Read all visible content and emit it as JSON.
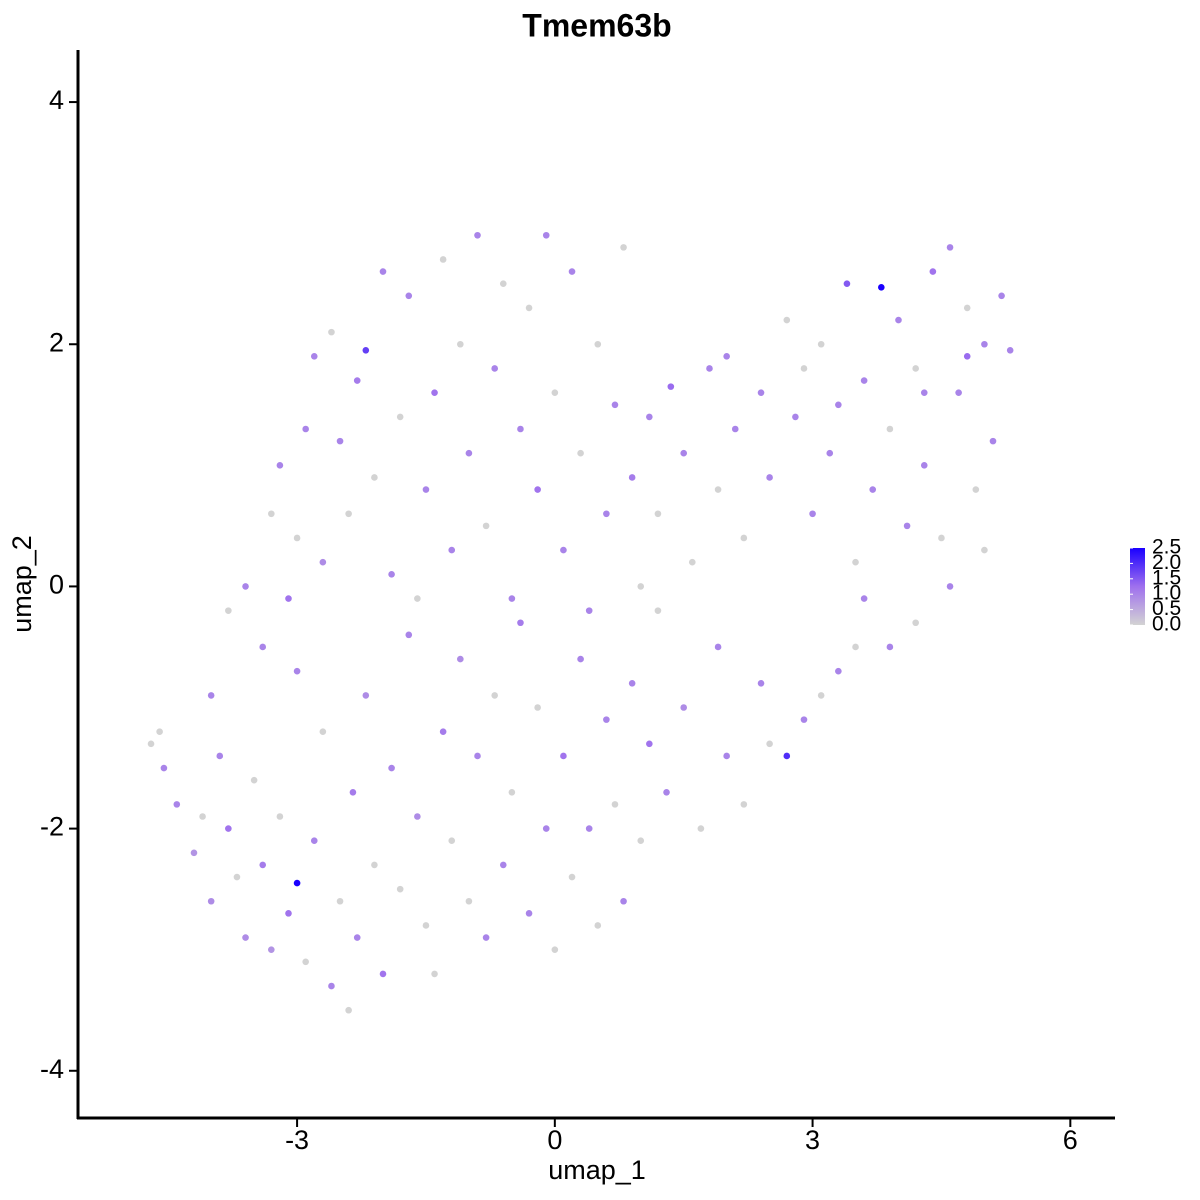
{
  "chart_data": {
    "type": "scatter",
    "title": "Tmem63b",
    "x_label": "umap_1",
    "y_label": "umap_2",
    "xlim": [
      -5.55,
      6.52
    ],
    "ylim": [
      -4.39,
      4.43
    ],
    "xticks": [
      -3,
      0,
      3,
      6
    ],
    "yticks": [
      -4,
      -2,
      0,
      2,
      4
    ],
    "grid": false,
    "color_stops": [
      "#d3d3d3",
      "#9f70ee",
      "#1a00ff"
    ],
    "colorbar_lim": [
      0,
      2.5
    ],
    "colorbar_ticks": [
      {
        "value": 0,
        "label": "0.0"
      },
      0.5,
      {
        "value": 1,
        "label": "1.0"
      },
      1.5,
      {
        "value": 2,
        "label": "2.0"
      },
      2.5
    ],
    "x": [
      -4.7,
      -4.6,
      -4.55,
      -4.4,
      -4.2,
      -4.1,
      -4.0,
      -3.9,
      -3.8,
      -3.7,
      -3.6,
      -3.5,
      -3.4,
      -3.3,
      -3.2,
      -3.1,
      -3.0,
      -3.0,
      -2.9,
      -2.8,
      -2.7,
      -2.6,
      -2.5,
      -2.4,
      -2.35,
      -2.3,
      -2.2,
      -2.1,
      -2.0,
      -1.9,
      -1.8,
      -1.7,
      -1.6,
      -1.5,
      -1.4,
      -1.3,
      -1.2,
      -1.1,
      -1.0,
      -0.9,
      -0.8,
      -0.7,
      -0.6,
      -0.5,
      -0.4,
      -0.3,
      -0.2,
      -0.1,
      0.0,
      0.1,
      0.2,
      0.3,
      0.4,
      0.5,
      0.6,
      0.7,
      0.8,
      0.9,
      1.0,
      1.1,
      1.2,
      1.3,
      1.5,
      1.7,
      1.9,
      2.0,
      2.2,
      2.4,
      2.5,
      2.7,
      2.9,
      3.1,
      3.3,
      3.5,
      -4.0,
      -3.8,
      -3.6,
      -3.4,
      -3.3,
      -3.2,
      -3.1,
      -3.0,
      -2.9,
      -2.8,
      -2.7,
      -2.6,
      -2.5,
      -2.4,
      -2.3,
      -2.2,
      -2.1,
      -2.0,
      -1.9,
      -1.8,
      -1.7,
      -1.6,
      -1.5,
      -1.4,
      -1.3,
      -1.2,
      -1.1,
      -1.0,
      -0.9,
      -0.8,
      -0.7,
      -0.6,
      -0.5,
      -0.4,
      -0.3,
      -0.2,
      -0.1,
      0.0,
      0.1,
      0.2,
      0.3,
      0.4,
      0.5,
      0.6,
      0.7,
      0.8,
      0.9,
      1.0,
      1.1,
      1.2,
      1.35,
      1.5,
      1.6,
      1.8,
      1.9,
      2.1,
      2.2,
      2.4,
      2.5,
      2.7,
      2.8,
      3.0,
      3.1,
      3.2,
      3.4,
      3.5,
      3.6,
      3.7,
      3.8,
      3.9,
      4.0,
      4.1,
      4.2,
      4.3,
      4.4,
      4.5,
      4.6,
      4.7,
      4.8,
      4.9,
      5.0,
      5.1,
      5.2,
      5.3,
      4.6,
      4.2,
      3.9,
      3.6,
      5.0,
      4.8,
      4.3,
      3.3,
      2.9,
      2.0
    ],
    "y": [
      -1.3,
      -1.2,
      -1.5,
      -1.8,
      -2.2,
      -1.9,
      -2.6,
      -1.4,
      -2.0,
      -2.4,
      -2.9,
      -1.6,
      -2.3,
      -3.0,
      -1.9,
      -2.7,
      -2.45,
      -0.7,
      -3.1,
      -2.1,
      -1.2,
      -3.3,
      -2.6,
      -3.5,
      -1.7,
      -2.9,
      -0.9,
      -2.3,
      -3.2,
      -1.5,
      -2.5,
      -0.4,
      -1.9,
      -2.8,
      -3.2,
      -1.2,
      -2.1,
      -0.6,
      -2.6,
      -1.4,
      -2.9,
      -0.9,
      -2.3,
      -1.7,
      -0.3,
      -2.7,
      -1.0,
      -2.0,
      -3.0,
      -1.4,
      -2.4,
      -0.6,
      -2.0,
      -2.8,
      -1.1,
      -1.8,
      -2.6,
      -0.8,
      -2.1,
      -1.3,
      -0.2,
      -1.7,
      -1.0,
      -2.0,
      -0.5,
      -1.4,
      -1.8,
      -0.8,
      -1.3,
      -1.4,
      -1.1,
      -0.9,
      -0.7,
      -0.5,
      -0.9,
      -0.2,
      0.0,
      -0.5,
      0.6,
      1.0,
      -0.1,
      0.4,
      1.3,
      1.9,
      0.2,
      2.1,
      1.2,
      0.6,
      1.7,
      1.95,
      0.9,
      2.6,
      0.1,
      1.4,
      2.4,
      -0.1,
      0.8,
      1.6,
      2.7,
      0.3,
      2.0,
      1.1,
      2.9,
      0.5,
      1.8,
      2.5,
      -0.1,
      1.3,
      2.3,
      0.8,
      2.9,
      1.6,
      0.3,
      2.6,
      1.1,
      -0.2,
      2.0,
      0.6,
      1.5,
      2.8,
      0.9,
      0.0,
      1.4,
      0.6,
      1.65,
      1.1,
      0.2,
      1.8,
      0.8,
      1.3,
      0.4,
      1.6,
      0.9,
      2.2,
      1.4,
      0.6,
      2.0,
      1.1,
      2.5,
      0.2,
      1.7,
      0.8,
      2.47,
      1.3,
      2.2,
      0.5,
      1.8,
      1.0,
      2.6,
      0.4,
      2.8,
      1.6,
      2.3,
      0.8,
      2.0,
      1.2,
      2.4,
      1.95,
      0.0,
      -0.3,
      -0.5,
      -0.1,
      0.3,
      1.9,
      1.6,
      1.5,
      1.8,
      1.9
    ],
    "expression": [
      0,
      0,
      1,
      1,
      0.8,
      0,
      0.9,
      1,
      1.2,
      0,
      0.9,
      0,
      1.1,
      0.8,
      0,
      1.2,
      2.5,
      1,
      0,
      1,
      0,
      1,
      0,
      0,
      1.1,
      1,
      0.9,
      0,
      1.2,
      1,
      0,
      1,
      0.9,
      0,
      0,
      1.1,
      0,
      0.9,
      0,
      1,
      1,
      0,
      1,
      0,
      1.1,
      1,
      0,
      1,
      0,
      1.2,
      0,
      1,
      1,
      0,
      1,
      0,
      1,
      1,
      0,
      1.2,
      0,
      1,
      0.9,
      0,
      1,
      1,
      0,
      1,
      0,
      2,
      1,
      0,
      1,
      0,
      1,
      0,
      1,
      1,
      0,
      1,
      1.2,
      0,
      1,
      1,
      0.9,
      0,
      1,
      0,
      1.1,
      1.8,
      0,
      1,
      1,
      0,
      1,
      0,
      1,
      1.2,
      0,
      1,
      0,
      1,
      1,
      0,
      1,
      0,
      1,
      1,
      0,
      1.2,
      1,
      0,
      1,
      1,
      0,
      1,
      0,
      1,
      1,
      0,
      1.1,
      0,
      1,
      0,
      1.3,
      1,
      0,
      1,
      0,
      1,
      0,
      1,
      1,
      0,
      1,
      1,
      0,
      1,
      1.5,
      0,
      1,
      1,
      2.5,
      0,
      1,
      1,
      0,
      1,
      1.2,
      0,
      1,
      1,
      0,
      0,
      1,
      1,
      1,
      1,
      1,
      0,
      1,
      1,
      0,
      1.3,
      1,
      1,
      0,
      1
    ]
  }
}
